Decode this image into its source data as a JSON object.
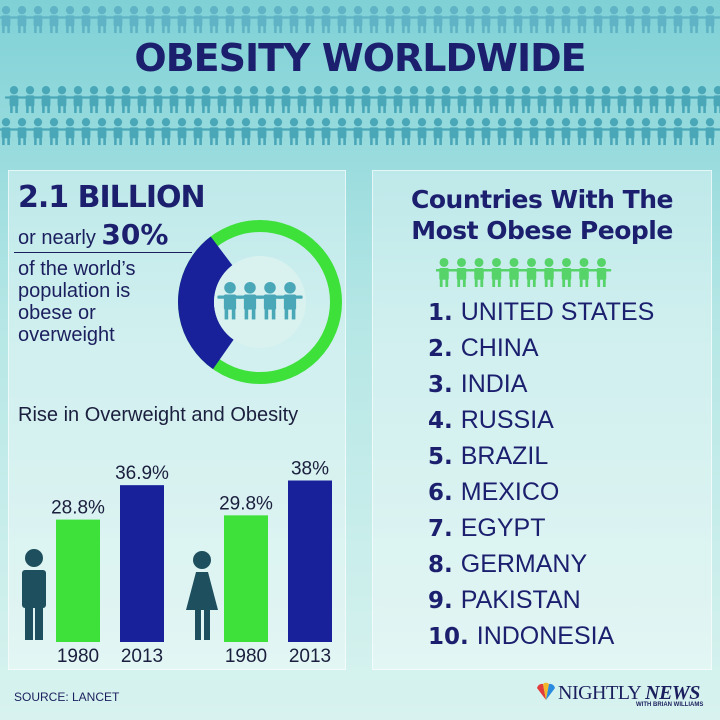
{
  "title": "OBESITY WORLDWIDE",
  "headline": {
    "big": "2.1 BILLION",
    "prefix": "or nearly ",
    "percent": "30%",
    "description": "of the world’s population is obese or overweight"
  },
  "donut_share": 0.3,
  "chart_data": {
    "type": "bar",
    "title": "Rise in Overweight and Obesity",
    "categories": [
      "1980",
      "2013",
      "1980",
      "2013"
    ],
    "groups": [
      "man-icon",
      "woman-icon"
    ],
    "values": [
      28.8,
      36.9,
      29.8,
      38
    ],
    "data_labels": [
      "28.8%",
      "36.9%",
      "29.8%",
      "38%"
    ],
    "bar_colors": [
      "#3ee03a",
      "#18209a",
      "#3ee03a",
      "#18209a"
    ],
    "ylim": [
      0,
      40
    ],
    "grid": false
  },
  "countries": {
    "title_line1": "Countries With The",
    "title_line2": "Most Obese People",
    "items": [
      {
        "rank": "1.",
        "name": "UNITED STATES"
      },
      {
        "rank": "2.",
        "name": "CHINA"
      },
      {
        "rank": "3.",
        "name": "INDIA"
      },
      {
        "rank": "4.",
        "name": "RUSSIA"
      },
      {
        "rank": "5.",
        "name": "BRAZIL"
      },
      {
        "rank": "6.",
        "name": "MEXICO"
      },
      {
        "rank": "7.",
        "name": "EGYPT"
      },
      {
        "rank": "8.",
        "name": "GERMANY"
      },
      {
        "rank": "9.",
        "name": "PAKISTAN"
      },
      {
        "rank": "10.",
        "name": "INDONESIA"
      }
    ]
  },
  "source": "SOURCE: LANCET",
  "logo": {
    "nightly": "NIGHTLY",
    "news": "NEWS",
    "sub": "WITH BRIAN WILLIAMS"
  },
  "colors": {
    "navy": "#1b1f6e",
    "green": "#3ee03a",
    "blue": "#18209a",
    "teal_people": "#4aa7b8",
    "green_people": "#56d46a"
  }
}
